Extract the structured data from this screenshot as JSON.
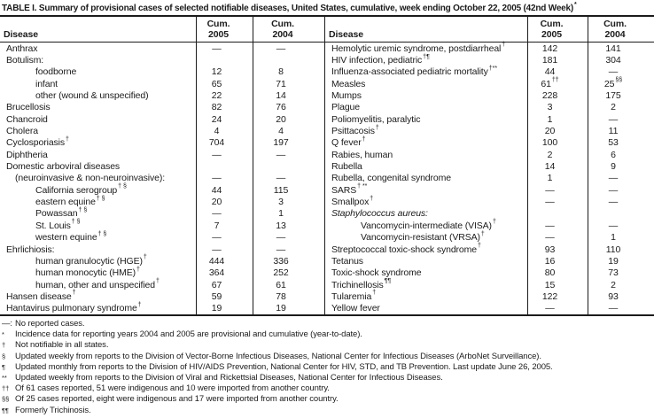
{
  "title": {
    "text": "TABLE I. Summary of provisional cases of selected notifiable diseases, United States, cumulative, week ending October 22, 2005 (42nd Week)",
    "marker": "*"
  },
  "table": {
    "header": {
      "disease": "Disease",
      "cum": "Cum.",
      "y2005": "2005",
      "y2004": "2004"
    },
    "left_rows": [
      {
        "label": "Anthrax",
        "v2005": "—",
        "v2004": "—"
      },
      {
        "label": "Botulism:",
        "v2005": "",
        "v2004": ""
      },
      {
        "label": "foodborne",
        "indent": 2,
        "v2005": "12",
        "v2004": "8"
      },
      {
        "label": "infant",
        "indent": 2,
        "v2005": "65",
        "v2004": "71"
      },
      {
        "label": "other (wound & unspecified)",
        "indent": 2,
        "v2005": "22",
        "v2004": "14"
      },
      {
        "label": "Brucellosis",
        "v2005": "82",
        "v2004": "76"
      },
      {
        "label": "Chancroid",
        "v2005": "24",
        "v2004": "20"
      },
      {
        "label": "Cholera",
        "v2005": "4",
        "v2004": "4"
      },
      {
        "label": "Cyclosporiasis",
        "sup": "†",
        "v2005": "704",
        "v2004": "197"
      },
      {
        "label": "Diphtheria",
        "v2005": "—",
        "v2004": "—"
      },
      {
        "label": "Domestic arboviral diseases",
        "v2005": "",
        "v2004": ""
      },
      {
        "label": "(neuroinvasive & non-neuroinvasive):",
        "indent": 1,
        "v2005": "—",
        "v2004": "—"
      },
      {
        "label": "California serogroup",
        "sup": "† §",
        "indent": 2,
        "v2005": "44",
        "v2004": "115"
      },
      {
        "label": "eastern equine",
        "sup": "† §",
        "indent": 2,
        "v2005": "20",
        "v2004": "3"
      },
      {
        "label": "Powassan",
        "sup": "† §",
        "indent": 2,
        "v2005": "—",
        "v2004": "1"
      },
      {
        "label": "St. Louis",
        "sup": "† §",
        "indent": 2,
        "v2005": "7",
        "v2004": "13"
      },
      {
        "label": "western equine",
        "sup": "† §",
        "indent": 2,
        "v2005": "—",
        "v2004": "—"
      },
      {
        "label": "Ehrlichiosis:",
        "v2005": "—",
        "v2004": "—"
      },
      {
        "label": "human granulocytic (HGE)",
        "sup": "†",
        "indent": 2,
        "v2005": "444",
        "v2004": "336"
      },
      {
        "label": "human monocytic (HME)",
        "sup": "†",
        "indent": 2,
        "v2005": "364",
        "v2004": "252"
      },
      {
        "label": "human, other and unspecified",
        "sup": "†",
        "indent": 2,
        "v2005": "67",
        "v2004": "61"
      },
      {
        "label": "Hansen disease",
        "sup": "†",
        "v2005": "59",
        "v2004": "78"
      },
      {
        "label": "Hantavirus pulmonary syndrome",
        "sup": "†",
        "v2005": "19",
        "v2004": "19"
      }
    ],
    "right_rows": [
      {
        "label": "Hemolytic uremic syndrome, postdiarrheal",
        "sup": "†",
        "v2005": "142",
        "v2004": "141"
      },
      {
        "label": "HIV infection, pediatric",
        "sup": "†¶",
        "v2005": "181",
        "v2004": "304"
      },
      {
        "label": "Influenza-associated pediatric mortality",
        "sup": "†**",
        "v2005": "44",
        "v2004": "—"
      },
      {
        "label": "Measles",
        "v2005": "61",
        "v2005_sup": "††",
        "v2004": "25",
        "v2004_sup": "§§"
      },
      {
        "label": "Mumps",
        "v2005": "228",
        "v2004": "175"
      },
      {
        "label": "Plague",
        "v2005": "3",
        "v2004": "2"
      },
      {
        "label": "Poliomyelitis, paralytic",
        "v2005": "1",
        "v2004": "—"
      },
      {
        "label": "Psittacosis",
        "sup": "†",
        "v2005": "20",
        "v2004": "11"
      },
      {
        "label": "Q fever",
        "sup": "†",
        "v2005": "100",
        "v2004": "53"
      },
      {
        "label": "Rabies, human",
        "v2005": "2",
        "v2004": "6"
      },
      {
        "label": "Rubella",
        "v2005": "14",
        "v2004": "9"
      },
      {
        "label": "Rubella, congenital syndrome",
        "v2005": "1",
        "v2004": "—"
      },
      {
        "label": "SARS",
        "sup": "† **",
        "v2005": "—",
        "v2004": "—"
      },
      {
        "label": "Smallpox",
        "sup": "†",
        "v2005": "—",
        "v2004": "—"
      },
      {
        "label": "Staphylococcus aureus:",
        "italic": true,
        "v2005": "",
        "v2004": ""
      },
      {
        "label": "Vancomycin-intermediate (VISA)",
        "sup": "†",
        "indent": 2,
        "v2005": "—",
        "v2004": "—"
      },
      {
        "label": "Vancomycin-resistant (VRSA)",
        "sup": "†",
        "indent": 2,
        "v2005": "—",
        "v2004": "1"
      },
      {
        "label": "Streptococcal toxic-shock syndrome",
        "sup": "†",
        "v2005": "93",
        "v2004": "110"
      },
      {
        "label": "Tetanus",
        "v2005": "16",
        "v2004": "19"
      },
      {
        "label": "Toxic-shock syndrome",
        "v2005": "80",
        "v2004": "73"
      },
      {
        "label": "Trichinellosis",
        "sup": "¶¶",
        "v2005": "15",
        "v2004": "2"
      },
      {
        "label": "Tularemia",
        "sup": "†",
        "v2005": "122",
        "v2004": "93"
      },
      {
        "label": "Yellow fever",
        "v2005": "—",
        "v2004": "—"
      }
    ]
  },
  "footnotes": [
    {
      "symbol": "—:",
      "sup": false,
      "text": "No reported cases."
    },
    {
      "symbol": "*",
      "sup": true,
      "text": "Incidence data for reporting years 2004 and 2005 are provisional and cumulative (year-to-date)."
    },
    {
      "symbol": "†",
      "sup": true,
      "text": "Not notifiable in all states."
    },
    {
      "symbol": "§",
      "sup": true,
      "text": "Updated weekly from reports to the Division of Vector-Borne Infectious Diseases, National Center for Infectious Diseases (ArboNet Surveillance)."
    },
    {
      "symbol": "¶",
      "sup": true,
      "text": "Updated monthly from reports to the Division of HIV/AIDS Prevention, National Center for HIV, STD, and TB Prevention. Last update June 26, 2005."
    },
    {
      "symbol": "**",
      "sup": true,
      "text": "Updated weekly from reports to the Division of Viral and Rickettsial Diseases, National Center for Infectious Diseases."
    },
    {
      "symbol": "††",
      "sup": true,
      "text": "Of 61 cases reported, 51 were indigenous and 10 were imported from another country."
    },
    {
      "symbol": "§§",
      "sup": true,
      "text": "Of 25 cases reported, eight were indigenous and 17 were imported from another country."
    },
    {
      "symbol": "¶¶",
      "sup": true,
      "text": "Formerly Trichinosis."
    }
  ]
}
